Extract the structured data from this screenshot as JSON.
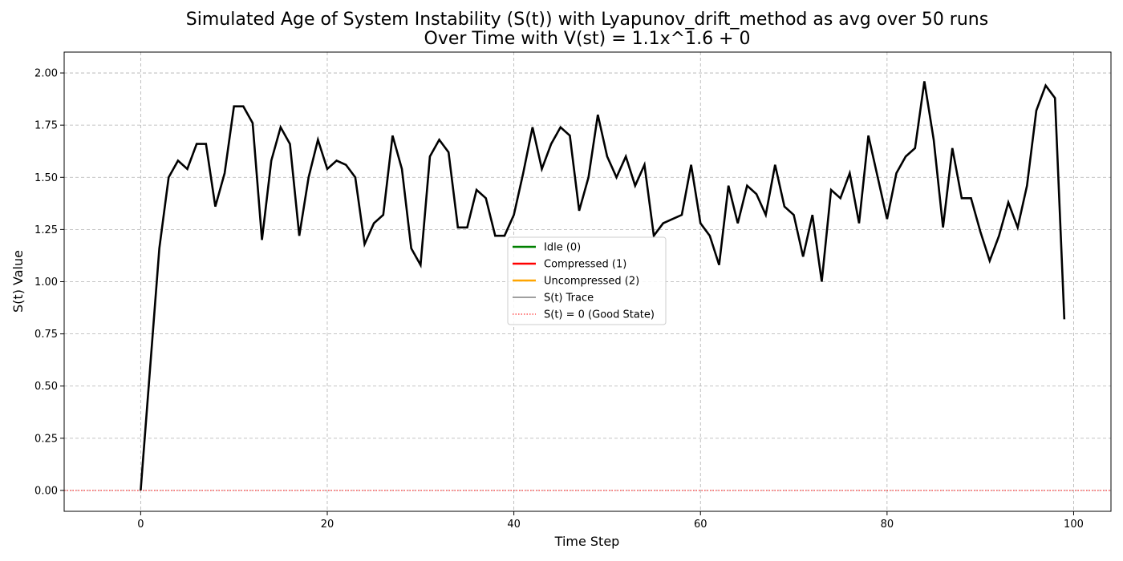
{
  "chart_data": {
    "type": "line",
    "title_line1": "Simulated Age of System Instability (S(t)) with Lyapunov_drift_method as avg over 50 runs",
    "title_line2": "Over Time with V(st) = 1.1x^1.6 + 0",
    "xlabel": "Time Step",
    "ylabel": "S(t) Value",
    "xlim": [
      -8.2,
      104.0
    ],
    "ylim": [
      -0.1,
      2.1
    ],
    "x_ticks": [
      0,
      20,
      40,
      60,
      80,
      100
    ],
    "y_ticks": [
      0.0,
      0.25,
      0.5,
      0.75,
      1.0,
      1.25,
      1.5,
      1.75,
      2.0
    ],
    "x_tick_labels": [
      "0",
      "20",
      "40",
      "60",
      "80",
      "100"
    ],
    "y_tick_labels": [
      "0.00",
      "0.25",
      "0.50",
      "0.75",
      "1.00",
      "1.25",
      "1.50",
      "1.75",
      "2.00"
    ],
    "grid": true,
    "legend_position": "center",
    "legend": [
      {
        "label": "Idle (0)",
        "color": "#008000",
        "style": "solid-thick"
      },
      {
        "label": "Compressed (1)",
        "color": "#ff0000",
        "style": "solid-thick"
      },
      {
        "label": "Uncompressed (2)",
        "color": "#ffa500",
        "style": "solid-thick"
      },
      {
        "label": "S(t) Trace",
        "color": "#000000",
        "style": "solid-thin"
      },
      {
        "label": "S(t) = 0 (Good State)",
        "color": "#ff0000",
        "style": "dotted"
      }
    ],
    "series": [
      {
        "name": "S(t) Trace",
        "color": "#000000",
        "x": [
          0,
          1,
          2,
          3,
          4,
          5,
          6,
          7,
          8,
          9,
          10,
          11,
          12,
          13,
          14,
          15,
          16,
          17,
          18,
          19,
          20,
          21,
          22,
          23,
          24,
          25,
          26,
          27,
          28,
          29,
          30,
          31,
          32,
          33,
          34,
          35,
          36,
          37,
          38,
          39,
          40,
          41,
          42,
          43,
          44,
          45,
          46,
          47,
          48,
          49,
          50,
          51,
          52,
          53,
          54,
          55,
          56,
          57,
          58,
          59,
          60,
          61,
          62,
          63,
          64,
          65,
          66,
          67,
          68,
          69,
          70,
          71,
          72,
          73,
          74,
          75,
          76,
          77,
          78,
          79,
          80,
          81,
          82,
          83,
          84,
          85,
          86,
          87,
          88,
          89,
          90,
          91,
          92,
          93,
          94,
          95,
          96,
          97,
          98,
          99
        ],
        "values": [
          0.0,
          0.58,
          1.16,
          1.5,
          1.58,
          1.54,
          1.66,
          1.66,
          1.36,
          1.52,
          1.84,
          1.84,
          1.76,
          1.2,
          1.58,
          1.74,
          1.66,
          1.22,
          1.5,
          1.68,
          1.54,
          1.58,
          1.56,
          1.5,
          1.18,
          1.28,
          1.32,
          1.7,
          1.54,
          1.16,
          1.08,
          1.6,
          1.68,
          1.62,
          1.26,
          1.26,
          1.44,
          1.4,
          1.22,
          1.22,
          1.32,
          1.52,
          1.74,
          1.54,
          1.66,
          1.74,
          1.7,
          1.34,
          1.5,
          1.8,
          1.6,
          1.5,
          1.6,
          1.46,
          1.56,
          1.22,
          1.28,
          1.3,
          1.32,
          1.56,
          1.28,
          1.22,
          1.08,
          1.46,
          1.28,
          1.46,
          1.42,
          1.32,
          1.56,
          1.36,
          1.32,
          1.12,
          1.32,
          1.0,
          1.44,
          1.4,
          1.52,
          1.28,
          1.7,
          1.5,
          1.3,
          1.52,
          1.6,
          1.64,
          1.96,
          1.68,
          1.26,
          1.64,
          1.4,
          1.4,
          1.24,
          1.1,
          1.22,
          1.38,
          1.26,
          1.46,
          1.82,
          1.94,
          1.88,
          0.82
        ]
      }
    ],
    "reference_line": {
      "label": "S(t) = 0 (Good State)",
      "y": 0,
      "color": "#ff0000"
    }
  }
}
